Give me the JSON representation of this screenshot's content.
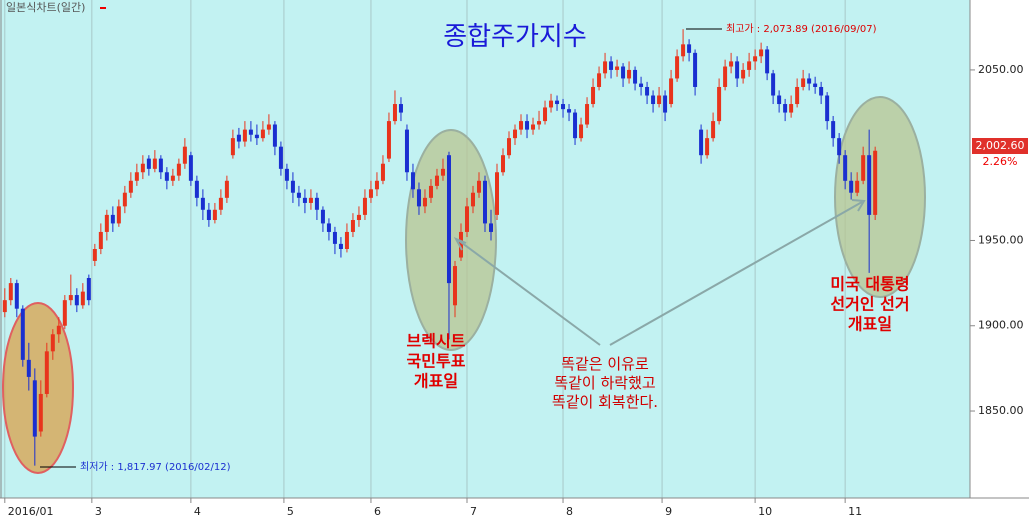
{
  "chart_data": {
    "type": "candlestick",
    "title": "종합주가지수",
    "chart_label": "일본식차트(일간)",
    "high_label": "최고가 : 2,073.89 (2016/09/07)",
    "low_label": "최저가 : 1,817.97 (2016/02/12)",
    "last_price_label": "2,002.60",
    "change_label": "2.26%",
    "annotations": [
      [
        "브렉시트",
        "국민투표",
        "개표일"
      ],
      [
        "미국 대통령",
        "선거인 선거",
        "개표일"
      ],
      [
        "똑같은 이유로",
        "똑같이 하락했고",
        "똑같이 회복한다."
      ]
    ],
    "up_color": "#e8341c",
    "down_color": "#1a2fd0",
    "xlim": [
      -0.8,
      160.8
    ],
    "ylim": [
      1799,
      2091
    ],
    "xticks": [
      {
        "value": 0,
        "label": "2016/01"
      },
      {
        "value": 14.5,
        "label": "3"
      },
      {
        "value": 31,
        "label": "4"
      },
      {
        "value": 46.5,
        "label": "5"
      },
      {
        "value": 61,
        "label": "6"
      },
      {
        "value": 77,
        "label": "7"
      },
      {
        "value": 93,
        "label": "8"
      },
      {
        "value": 109.5,
        "label": "9"
      },
      {
        "value": 125,
        "label": "10"
      },
      {
        "value": 140,
        "label": "11"
      }
    ],
    "yticks": [
      {
        "value": 1850,
        "label": "1850.00"
      },
      {
        "value": 1900,
        "label": "1900.00"
      },
      {
        "value": 1950,
        "label": "1950.00"
      },
      {
        "value": 2050,
        "label": "2050.00"
      }
    ],
    "candles": [
      [
        1908,
        1922,
        1905,
        1915
      ],
      [
        1915,
        1928,
        1912,
        1925
      ],
      [
        1925,
        1927,
        1905,
        1910
      ],
      [
        1910,
        1912,
        1876,
        1880
      ],
      [
        1880,
        1890,
        1862,
        1870
      ],
      [
        1868,
        1875,
        1817.97,
        1835
      ],
      [
        1838,
        1868,
        1835,
        1860
      ],
      [
        1860,
        1890,
        1858,
        1885
      ],
      [
        1885,
        1898,
        1880,
        1895
      ],
      [
        1895,
        1905,
        1890,
        1900
      ],
      [
        1900,
        1918,
        1898,
        1915
      ],
      [
        1915,
        1930,
        1912,
        1918
      ],
      [
        1918,
        1922,
        1908,
        1912
      ],
      [
        1912,
        1925,
        1910,
        1920
      ],
      [
        1928,
        1930,
        1912,
        1915
      ],
      [
        1938,
        1948,
        1935,
        1945
      ],
      [
        1945,
        1960,
        1942,
        1955
      ],
      [
        1955,
        1968,
        1950,
        1965
      ],
      [
        1965,
        1970,
        1955,
        1960
      ],
      [
        1960,
        1974,
        1958,
        1970
      ],
      [
        1970,
        1982,
        1966,
        1978
      ],
      [
        1978,
        1990,
        1975,
        1985
      ],
      [
        1985,
        1995,
        1982,
        1990
      ],
      [
        1990,
        2000,
        1986,
        1995
      ],
      [
        1998,
        2000,
        1988,
        1992
      ],
      [
        1992,
        2003,
        1990,
        1998
      ],
      [
        1998,
        2000,
        1986,
        1990
      ],
      [
        1990,
        1993,
        1980,
        1985
      ],
      [
        1985,
        1992,
        1982,
        1988
      ],
      [
        1988,
        1998,
        1985,
        1995
      ],
      [
        1995,
        2010,
        1992,
        2005
      ],
      [
        2000,
        2002,
        1982,
        1985
      ],
      [
        1985,
        1988,
        1970,
        1975
      ],
      [
        1975,
        1980,
        1962,
        1968
      ],
      [
        1968,
        1972,
        1958,
        1962
      ],
      [
        1962,
        1972,
        1960,
        1968
      ],
      [
        1968,
        1980,
        1965,
        1975
      ],
      [
        1975,
        1988,
        1972,
        1985
      ],
      [
        2000,
        2015,
        1998,
        2010
      ],
      [
        2012,
        2016,
        2004,
        2008
      ],
      [
        2008,
        2020,
        2005,
        2015
      ],
      [
        2015,
        2020,
        2008,
        2012
      ],
      [
        2012,
        2018,
        2006,
        2010
      ],
      [
        2010,
        2020,
        2008,
        2015
      ],
      [
        2015,
        2024,
        2012,
        2018
      ],
      [
        2018,
        2020,
        2000,
        2005
      ],
      [
        2005,
        2008,
        1988,
        1992
      ],
      [
        1992,
        1995,
        1980,
        1985
      ],
      [
        1985,
        1990,
        1972,
        1978
      ],
      [
        1978,
        1982,
        1970,
        1975
      ],
      [
        1975,
        1980,
        1966,
        1972
      ],
      [
        1972,
        1980,
        1968,
        1975
      ],
      [
        1975,
        1978,
        1962,
        1968
      ],
      [
        1968,
        1970,
        1955,
        1960
      ],
      [
        1960,
        1963,
        1950,
        1955
      ],
      [
        1955,
        1958,
        1942,
        1948
      ],
      [
        1948,
        1952,
        1940,
        1945
      ],
      [
        1945,
        1960,
        1943,
        1955
      ],
      [
        1955,
        1966,
        1952,
        1962
      ],
      [
        1962,
        1970,
        1958,
        1965
      ],
      [
        1965,
        1980,
        1962,
        1975
      ],
      [
        1975,
        1985,
        1972,
        1980
      ],
      [
        1980,
        1990,
        1976,
        1985
      ],
      [
        1985,
        2000,
        1983,
        1995
      ],
      [
        1998,
        2025,
        1996,
        2020
      ],
      [
        2020,
        2038,
        2018,
        2030
      ],
      [
        2030,
        2034,
        2020,
        2025
      ],
      [
        2015,
        2018,
        1985,
        1990
      ],
      [
        1990,
        1995,
        1975,
        1980
      ],
      [
        1980,
        1984,
        1965,
        1970
      ],
      [
        1970,
        1980,
        1966,
        1975
      ],
      [
        1975,
        1986,
        1972,
        1982
      ],
      [
        1982,
        1992,
        1980,
        1988
      ],
      [
        1988,
        1998,
        1985,
        1992
      ],
      [
        2000,
        2002,
        1892,
        1925
      ],
      [
        1912,
        1938,
        1905,
        1935
      ],
      [
        1940,
        1960,
        1938,
        1955
      ],
      [
        1955,
        1975,
        1952,
        1970
      ],
      [
        1970,
        1982,
        1966,
        1978
      ],
      [
        1978,
        1990,
        1975,
        1985
      ],
      [
        1985,
        1988,
        1955,
        1960
      ],
      [
        1960,
        1968,
        1950,
        1955
      ],
      [
        1965,
        1995,
        1962,
        1990
      ],
      [
        1990,
        2004,
        1988,
        2000
      ],
      [
        2000,
        2014,
        1998,
        2010
      ],
      [
        2010,
        2018,
        2006,
        2015
      ],
      [
        2015,
        2024,
        2012,
        2020
      ],
      [
        2020,
        2024,
        2010,
        2015
      ],
      [
        2015,
        2022,
        2012,
        2018
      ],
      [
        2018,
        2026,
        2015,
        2020
      ],
      [
        2020,
        2032,
        2018,
        2028
      ],
      [
        2028,
        2036,
        2025,
        2032
      ],
      [
        2032,
        2035,
        2026,
        2030
      ],
      [
        2030,
        2033,
        2022,
        2027
      ],
      [
        2027,
        2030,
        2020,
        2025
      ],
      [
        2025,
        2027,
        2006,
        2010
      ],
      [
        2010,
        2022,
        2008,
        2018
      ],
      [
        2018,
        2034,
        2016,
        2030
      ],
      [
        2030,
        2045,
        2028,
        2040
      ],
      [
        2040,
        2052,
        2038,
        2048
      ],
      [
        2048,
        2060,
        2045,
        2055
      ],
      [
        2055,
        2058,
        2045,
        2050
      ],
      [
        2050,
        2056,
        2046,
        2052
      ],
      [
        2052,
        2054,
        2040,
        2045
      ],
      [
        2045,
        2055,
        2042,
        2050
      ],
      [
        2050,
        2052,
        2038,
        2042
      ],
      [
        2042,
        2046,
        2035,
        2040
      ],
      [
        2040,
        2043,
        2030,
        2035
      ],
      [
        2035,
        2038,
        2025,
        2030
      ],
      [
        2030,
        2040,
        2028,
        2035
      ],
      [
        2035,
        2038,
        2020,
        2025
      ],
      [
        2030,
        2050,
        2028,
        2045
      ],
      [
        2045,
        2062,
        2043,
        2058
      ],
      [
        2058,
        2073.89,
        2055,
        2065
      ],
      [
        2065,
        2068,
        2055,
        2060
      ],
      [
        2060,
        2062,
        2035,
        2040
      ],
      [
        2015,
        2018,
        1995,
        2000
      ],
      [
        2000,
        2015,
        1998,
        2010
      ],
      [
        2010,
        2025,
        2008,
        2020
      ],
      [
        2020,
        2045,
        2018,
        2040
      ],
      [
        2040,
        2056,
        2038,
        2052
      ],
      [
        2052,
        2060,
        2048,
        2055
      ],
      [
        2055,
        2058,
        2040,
        2045
      ],
      [
        2045,
        2054,
        2042,
        2050
      ],
      [
        2050,
        2060,
        2046,
        2055
      ],
      [
        2055,
        2062,
        2050,
        2058
      ],
      [
        2058,
        2066,
        2054,
        2062
      ],
      [
        2062,
        2064,
        2044,
        2048
      ],
      [
        2048,
        2050,
        2030,
        2035
      ],
      [
        2035,
        2038,
        2025,
        2030
      ],
      [
        2030,
        2033,
        2020,
        2025
      ],
      [
        2025,
        2035,
        2022,
        2030
      ],
      [
        2030,
        2045,
        2028,
        2040
      ],
      [
        2040,
        2050,
        2038,
        2045
      ],
      [
        2045,
        2048,
        2038,
        2042
      ],
      [
        2042,
        2046,
        2036,
        2040
      ],
      [
        2040,
        2043,
        2030,
        2035
      ],
      [
        2035,
        2037,
        2015,
        2020
      ],
      [
        2020,
        2023,
        2005,
        2010
      ],
      [
        2010,
        2013,
        1995,
        2000
      ],
      [
        2000,
        2003,
        1980,
        1985
      ],
      [
        1985,
        1990,
        1974,
        1978
      ],
      [
        1978,
        1990,
        1976,
        1985
      ],
      [
        1985,
        2005,
        1983,
        2000
      ],
      [
        2000,
        2015,
        1931,
        1965
      ],
      [
        1965,
        2005,
        1962,
        2002.6
      ]
    ]
  }
}
